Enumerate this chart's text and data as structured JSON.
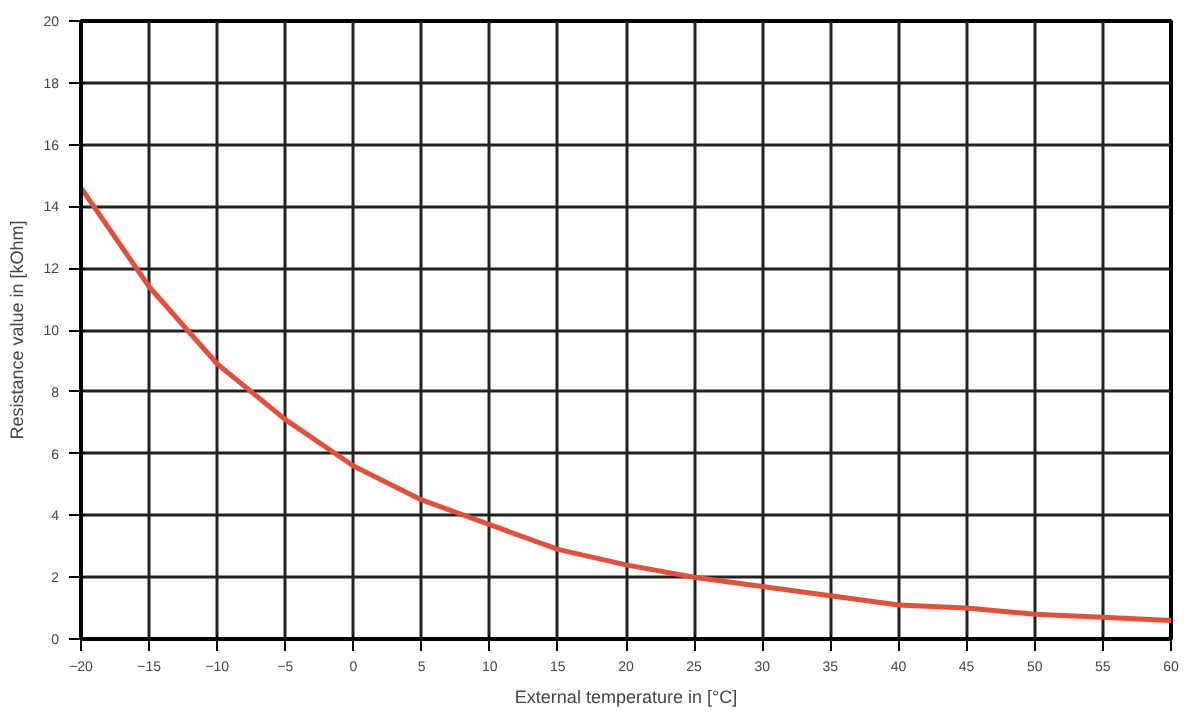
{
  "chart_data": {
    "type": "line",
    "xlabel": "External temperature in [°C]",
    "ylabel": "Resistance value in [kOhm]",
    "x": [
      -20,
      -15,
      -10,
      -5,
      0,
      5,
      10,
      15,
      20,
      25,
      30,
      35,
      40,
      45,
      50,
      55,
      60
    ],
    "series": [
      {
        "color": "#e0503a",
        "values": [
          14.6,
          11.4,
          8.9,
          7.1,
          5.6,
          4.5,
          3.7,
          2.9,
          2.4,
          2.0,
          1.7,
          1.4,
          1.1,
          1.0,
          0.8,
          0.7,
          0.6
        ]
      }
    ],
    "xlim": [
      -20,
      60
    ],
    "ylim": [
      0,
      20
    ],
    "xticks": [
      -20,
      -15,
      -10,
      -5,
      0,
      5,
      10,
      15,
      20,
      25,
      30,
      35,
      40,
      45,
      50,
      55,
      60
    ],
    "yticks": [
      0,
      2,
      4,
      6,
      8,
      10,
      12,
      14,
      16,
      18,
      20
    ],
    "grid": true,
    "marker": "none",
    "line_style": "solid"
  }
}
